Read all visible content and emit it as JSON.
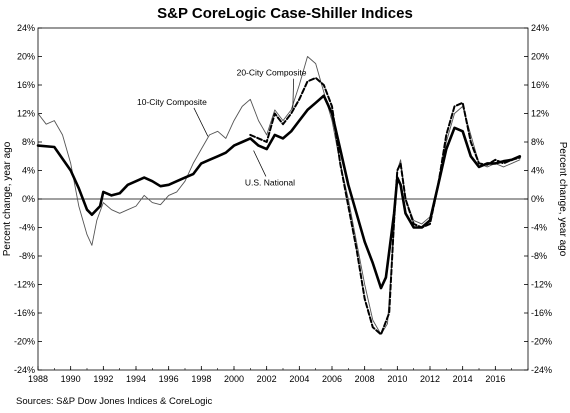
{
  "title": "S&P CoreLogic Case-Shiller Indices",
  "source": "Sources:  S&P Dow Jones Indices & CoreLogic",
  "chart_data": {
    "type": "line",
    "title": "S&P CoreLogic Case-Shiller Indices",
    "ylabel_left": "Percent change, year ago",
    "ylabel_right": "Percent change, year ago",
    "xlim": [
      1988,
      2018
    ],
    "ylim": [
      -24,
      24
    ],
    "x_ticks": [
      "1988",
      "1990",
      "1992",
      "1994",
      "1996",
      "1998",
      "2000",
      "2002",
      "2004",
      "2006",
      "2008",
      "2010",
      "2012",
      "2014",
      "2016"
    ],
    "y_ticks": [
      "24%",
      "20%",
      "16%",
      "12%",
      "8%",
      "4%",
      "0%",
      "-4%",
      "-8%",
      "-12%",
      "-16%",
      "-20%",
      "-24%"
    ],
    "grid": false,
    "zero_line": true,
    "series": [
      {
        "name": "10-City Composite",
        "style": "thin",
        "color": "#555555",
        "points": [
          [
            1988,
            12
          ],
          [
            1988.5,
            10.5
          ],
          [
            1989,
            11
          ],
          [
            1989.5,
            9
          ],
          [
            1990,
            5
          ],
          [
            1990.5,
            -1
          ],
          [
            1991,
            -5
          ],
          [
            1991.3,
            -6.5
          ],
          [
            1991.6,
            -3
          ],
          [
            1992,
            -0.5
          ],
          [
            1992.5,
            -1.5
          ],
          [
            1993,
            -2
          ],
          [
            1993.5,
            -1.5
          ],
          [
            1994,
            -1
          ],
          [
            1994.5,
            0.5
          ],
          [
            1995,
            -0.5
          ],
          [
            1995.5,
            -0.8
          ],
          [
            1996,
            0.5
          ],
          [
            1996.5,
            1
          ],
          [
            1997,
            2.5
          ],
          [
            1997.5,
            5
          ],
          [
            1998,
            7
          ],
          [
            1998.5,
            9
          ],
          [
            1999,
            9.5
          ],
          [
            1999.5,
            8.5
          ],
          [
            2000,
            11
          ],
          [
            2000.5,
            13
          ],
          [
            2001,
            14
          ],
          [
            2001.5,
            11
          ],
          [
            2002,
            9
          ],
          [
            2002.5,
            12.5
          ],
          [
            2003,
            11
          ],
          [
            2003.5,
            12.5
          ],
          [
            2004,
            16
          ],
          [
            2004.5,
            20
          ],
          [
            2005,
            19
          ],
          [
            2005.5,
            15
          ],
          [
            2006,
            11
          ],
          [
            2006.5,
            5
          ],
          [
            2007,
            0
          ],
          [
            2007.5,
            -6
          ],
          [
            2008,
            -12
          ],
          [
            2008.5,
            -17
          ],
          [
            2009,
            -19
          ],
          [
            2009.4,
            -17.5
          ],
          [
            2009.8,
            -4
          ],
          [
            2010,
            4
          ],
          [
            2010.2,
            5.5
          ],
          [
            2010.5,
            0
          ],
          [
            2011,
            -3
          ],
          [
            2011.5,
            -3.5
          ],
          [
            2012,
            -2.5
          ],
          [
            2012.5,
            2
          ],
          [
            2013,
            8
          ],
          [
            2013.5,
            12
          ],
          [
            2014,
            13
          ],
          [
            2014.5,
            9
          ],
          [
            2015,
            5
          ],
          [
            2015.5,
            4.5
          ],
          [
            2016,
            5
          ],
          [
            2016.5,
            4.5
          ],
          [
            2017,
            5
          ],
          [
            2017.5,
            5.5
          ]
        ]
      },
      {
        "name": "20-City Composite",
        "style": "dashed",
        "color": "#000000",
        "points": [
          [
            2001,
            9
          ],
          [
            2001.5,
            8.5
          ],
          [
            2002,
            8
          ],
          [
            2002.5,
            12
          ],
          [
            2003,
            10.5
          ],
          [
            2003.5,
            12
          ],
          [
            2004,
            14
          ],
          [
            2004.5,
            16.5
          ],
          [
            2005,
            17
          ],
          [
            2005.5,
            16
          ],
          [
            2006,
            13
          ],
          [
            2006.5,
            5
          ],
          [
            2007,
            -1
          ],
          [
            2007.5,
            -7
          ],
          [
            2008,
            -14
          ],
          [
            2008.5,
            -18
          ],
          [
            2009,
            -19
          ],
          [
            2009.5,
            -16
          ],
          [
            2009.8,
            -3
          ],
          [
            2010,
            4
          ],
          [
            2010.2,
            5
          ],
          [
            2010.5,
            0
          ],
          [
            2011,
            -3.5
          ],
          [
            2011.5,
            -4
          ],
          [
            2012,
            -3.5
          ],
          [
            2012.5,
            2
          ],
          [
            2013,
            9
          ],
          [
            2013.5,
            13
          ],
          [
            2014,
            13.5
          ],
          [
            2014.5,
            8
          ],
          [
            2015,
            5
          ],
          [
            2015.5,
            4.8
          ],
          [
            2016,
            5.5
          ],
          [
            2016.5,
            5
          ],
          [
            2017,
            5.5
          ],
          [
            2017.5,
            5.8
          ]
        ]
      },
      {
        "name": "U.S. National",
        "style": "thick",
        "color": "#000000",
        "points": [
          [
            1988,
            7.5
          ],
          [
            1989,
            7.3
          ],
          [
            1990,
            4
          ],
          [
            1990.5,
            1.5
          ],
          [
            1991,
            -1.5
          ],
          [
            1991.3,
            -2.2
          ],
          [
            1991.8,
            -1
          ],
          [
            1992,
            1
          ],
          [
            1992.5,
            0.5
          ],
          [
            1993,
            0.8
          ],
          [
            1993.5,
            2
          ],
          [
            1994,
            2.5
          ],
          [
            1994.5,
            3
          ],
          [
            1995,
            2.5
          ],
          [
            1995.5,
            1.8
          ],
          [
            1996,
            2
          ],
          [
            1996.5,
            2.5
          ],
          [
            1997,
            3
          ],
          [
            1997.5,
            3.5
          ],
          [
            1998,
            5
          ],
          [
            1998.5,
            5.5
          ],
          [
            1999,
            6
          ],
          [
            1999.5,
            6.5
          ],
          [
            2000,
            7.5
          ],
          [
            2000.5,
            8
          ],
          [
            2001,
            8.5
          ],
          [
            2001.5,
            7.5
          ],
          [
            2002,
            7
          ],
          [
            2002.5,
            9
          ],
          [
            2003,
            8.5
          ],
          [
            2003.5,
            9.5
          ],
          [
            2004,
            11
          ],
          [
            2004.5,
            12.5
          ],
          [
            2005,
            13.5
          ],
          [
            2005.5,
            14.5
          ],
          [
            2006,
            12
          ],
          [
            2006.5,
            7
          ],
          [
            2007,
            2
          ],
          [
            2007.5,
            -2
          ],
          [
            2008,
            -6
          ],
          [
            2008.5,
            -9
          ],
          [
            2009,
            -12.5
          ],
          [
            2009.3,
            -11
          ],
          [
            2009.8,
            -2
          ],
          [
            2010,
            3
          ],
          [
            2010.2,
            2
          ],
          [
            2010.5,
            -2
          ],
          [
            2011,
            -4
          ],
          [
            2011.5,
            -4
          ],
          [
            2012,
            -3
          ],
          [
            2012.5,
            2
          ],
          [
            2013,
            7
          ],
          [
            2013.5,
            10
          ],
          [
            2014,
            9.5
          ],
          [
            2014.5,
            6
          ],
          [
            2015,
            4.5
          ],
          [
            2015.5,
            5
          ],
          [
            2016,
            5
          ],
          [
            2016.5,
            5.3
          ],
          [
            2017,
            5.5
          ],
          [
            2017.5,
            6
          ]
        ]
      }
    ],
    "annotations": [
      {
        "text": "20-City Composite",
        "at": [
          2002.3,
          17.3
        ],
        "points_to": [
          2003.6,
          12.5
        ]
      },
      {
        "text": "10-City Composite",
        "at": [
          1996.2,
          13.2
        ],
        "points_to": [
          1998.4,
          8.8
        ]
      },
      {
        "text": "U.S. National",
        "at": [
          2002.2,
          1.9
        ],
        "points_to": [
          2001.2,
          6.8
        ]
      }
    ]
  }
}
